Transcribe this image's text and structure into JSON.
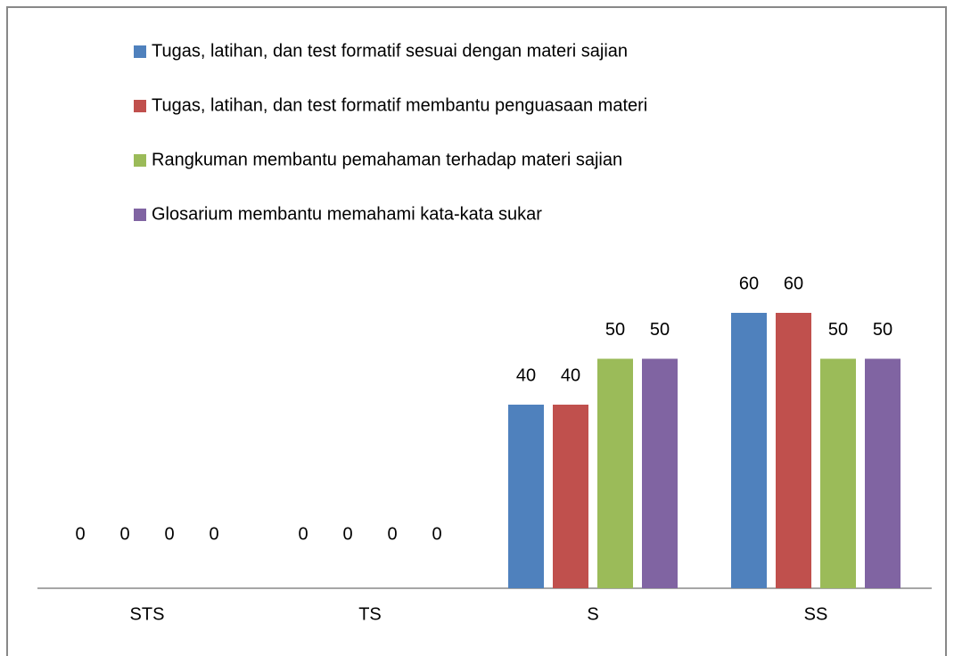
{
  "chart_data": {
    "type": "bar",
    "categories": [
      "STS",
      "TS",
      "S",
      "SS"
    ],
    "series": [
      {
        "name": "Tugas, latihan,  dan test formatif  sesuai  dengan materi sajian",
        "color": "#4f81bd",
        "values": [
          0,
          0,
          40,
          60
        ]
      },
      {
        "name": "Tugas, latihan,  dan test formatif  membantu penguasaan materi",
        "color": "#c0504d",
        "values": [
          0,
          0,
          40,
          60
        ]
      },
      {
        "name": "Rangkuman  membantu pemahaman terhadap materi sajian",
        "color": "#9bbb59",
        "values": [
          0,
          0,
          50,
          50
        ]
      },
      {
        "name": "Glosarium membantu memahami kata-kata sukar",
        "color": "#8064a2",
        "values": [
          0,
          0,
          50,
          50
        ]
      }
    ],
    "ylim": [
      0,
      100
    ],
    "legend": "top"
  }
}
